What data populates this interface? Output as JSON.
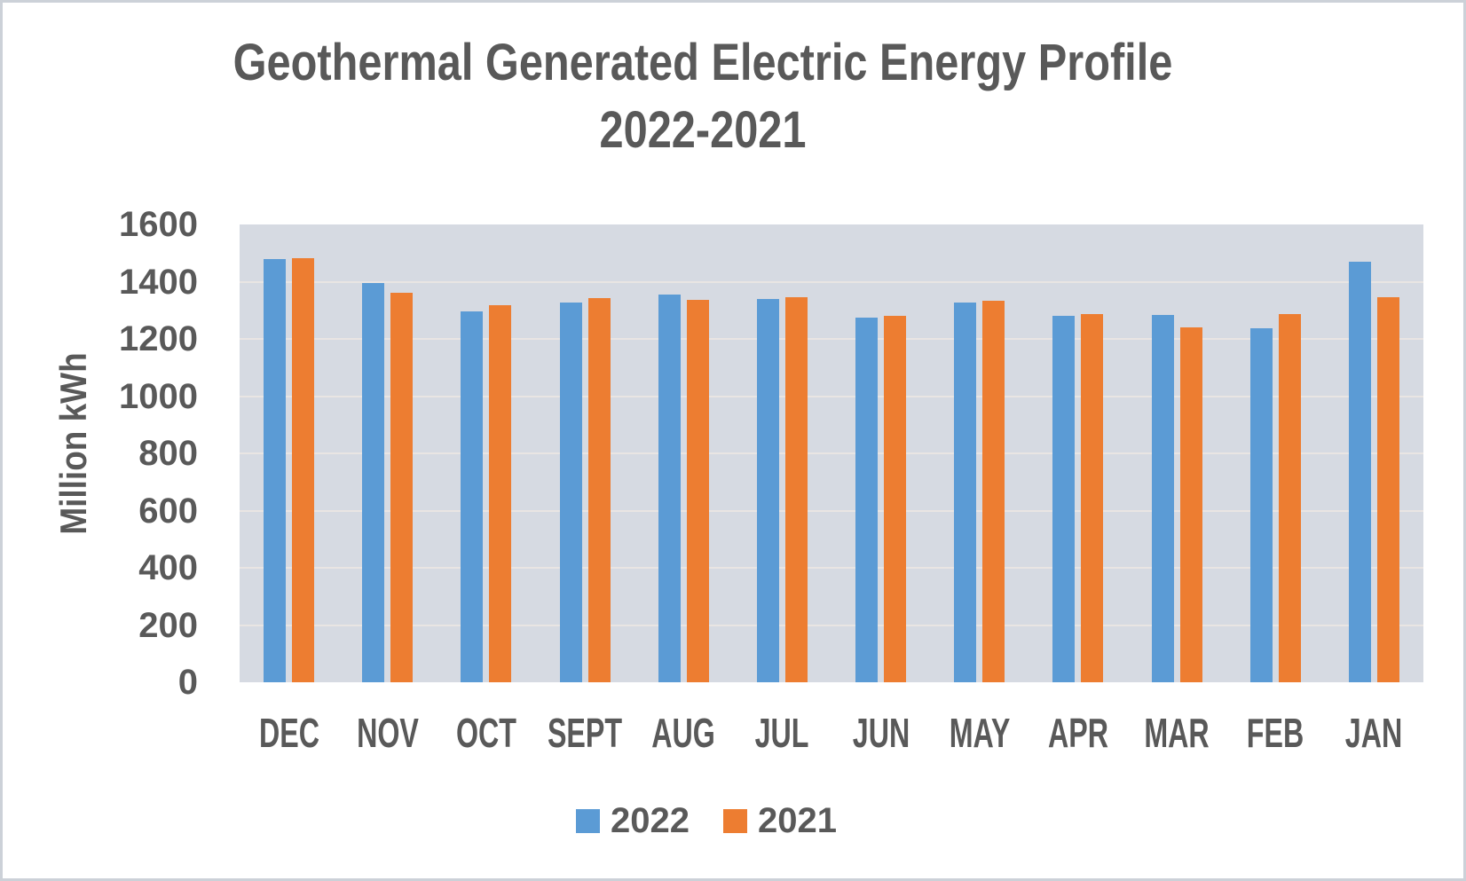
{
  "chart_data": {
    "type": "bar",
    "title_line1": "Geothermal Generated Electric Energy Profile",
    "title_line2": "2022-2021",
    "ylabel": "Million kWh",
    "ylim": [
      0,
      1600
    ],
    "ytick_step": 200,
    "grid": true,
    "legend_position": "bottom",
    "categories": [
      "DEC",
      "NOV",
      "OCT",
      "SEPT",
      "AUG",
      "JUL",
      "JUN",
      "MAY",
      "APR",
      "MAR",
      "FEB",
      "JAN"
    ],
    "series": [
      {
        "name": "2022",
        "color": "#5B9BD5",
        "values": [
          1480,
          1395,
          1295,
          1326,
          1354,
          1340,
          1274,
          1326,
          1280,
          1283,
          1238,
          1471
        ]
      },
      {
        "name": "2021",
        "color": "#ED7D31",
        "values": [
          1483,
          1362,
          1318,
          1342,
          1336,
          1347,
          1280,
          1334,
          1287,
          1240,
          1287,
          1345
        ]
      }
    ]
  },
  "colors": {
    "text": "#595959",
    "plot_background": "#D6DAE2",
    "gridline": "#E9E5E3",
    "page_background": "#FFFFFF",
    "series_2022": "#5B9BD5",
    "series_2021": "#ED7D31"
  }
}
